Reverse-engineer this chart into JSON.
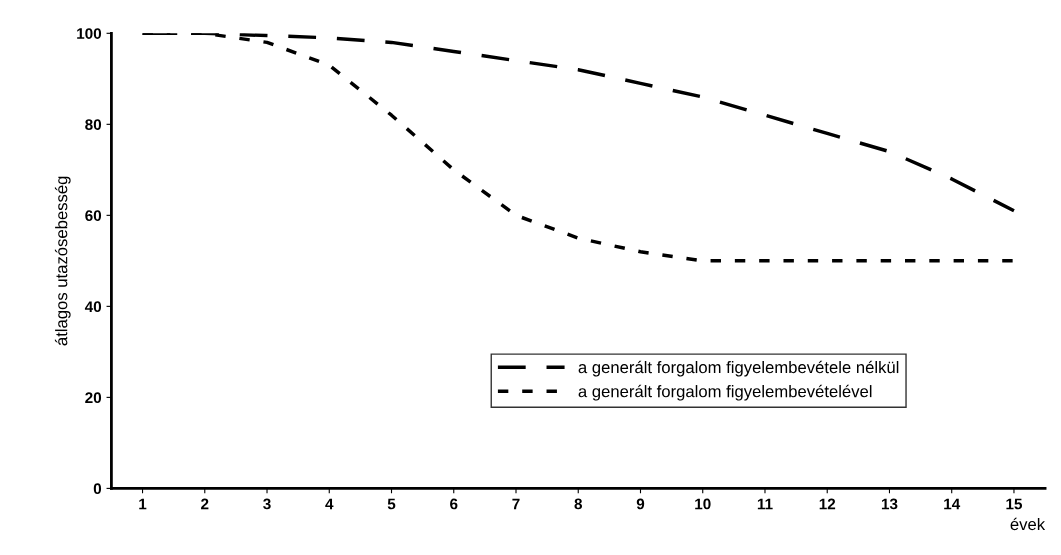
{
  "chart_data": {
    "type": "line",
    "xlabel": "évek",
    "ylabel": "átlagos utazósebesség",
    "categories": [
      "1",
      "2",
      "3",
      "4",
      "5",
      "6",
      "7",
      "8",
      "9",
      "10",
      "11",
      "12",
      "13",
      "14",
      "15"
    ],
    "series": [
      {
        "name": "a generált forgalom figyelembevétele nélkül",
        "color": "#000000",
        "line_style": "dashed",
        "values": [
          100,
          100,
          99.5,
          99,
          98,
          96,
          94,
          92,
          89,
          86,
          82,
          78,
          74,
          68,
          61
        ]
      },
      {
        "name": "a generált forgalom figyelembevételével",
        "color": "#000000",
        "line_style": "dotted",
        "values": [
          100,
          100,
          98,
          93,
          82,
          70,
          60,
          55,
          52,
          50,
          50,
          50,
          50,
          50,
          50
        ]
      }
    ],
    "ylim": [
      0,
      100
    ],
    "yticks": [
      0,
      20,
      40,
      60,
      80,
      100
    ],
    "grid": false,
    "legend": "bottom right",
    "marker": "none"
  }
}
